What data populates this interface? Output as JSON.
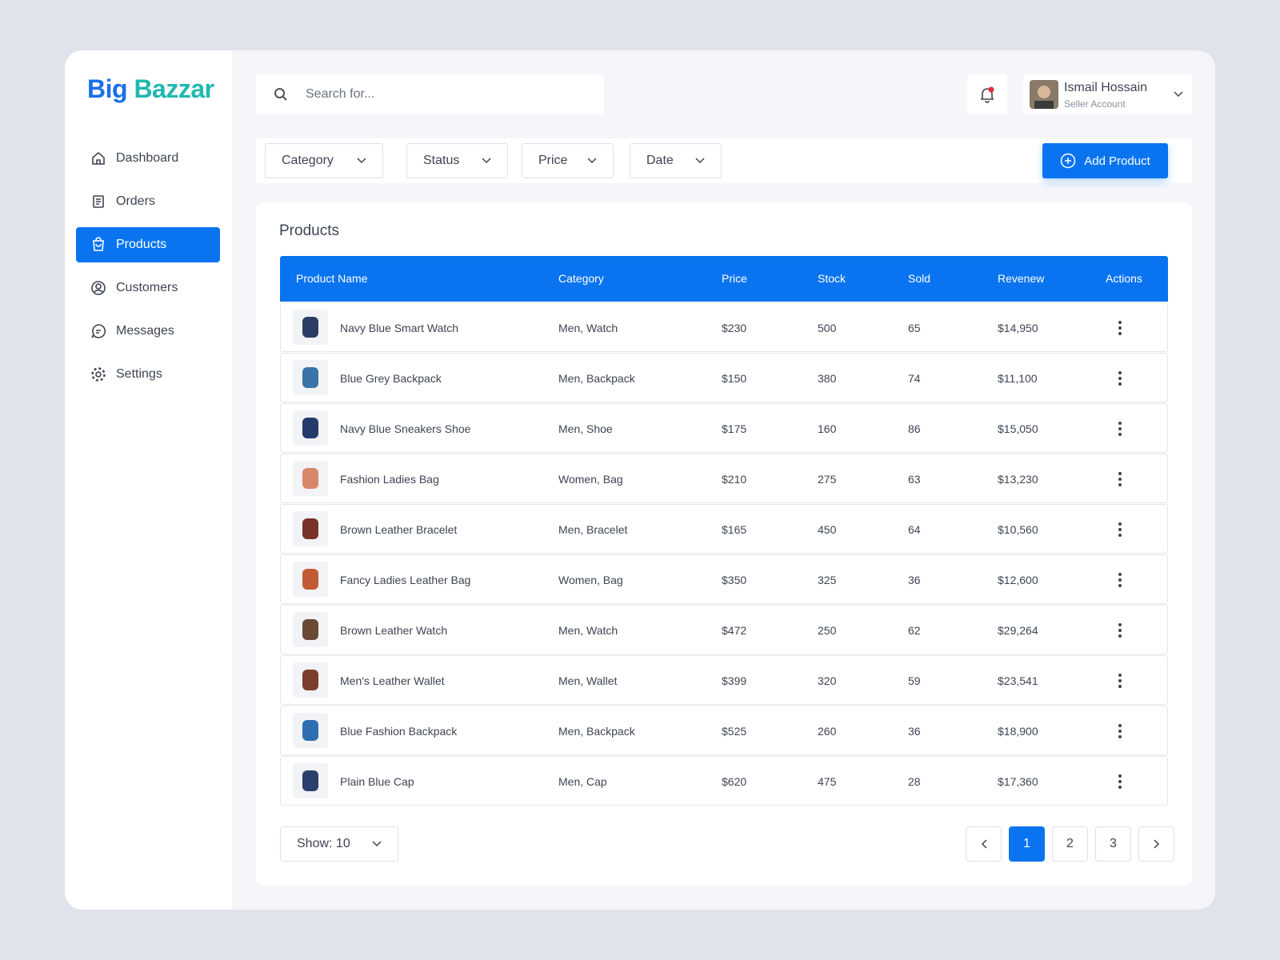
{
  "brand": {
    "first": "Big",
    "second": "Bazzar"
  },
  "nav": [
    "Dashboard",
    "Orders",
    "Products",
    "Customers",
    "Messages",
    "Settings"
  ],
  "search": {
    "placeholder": "Search for..."
  },
  "user": {
    "name": "Ismail Hossain",
    "role": "Seller Account"
  },
  "filters": [
    "Category",
    "Status",
    "Price",
    "Date"
  ],
  "add_button": "Add Product",
  "table": {
    "title": "Products",
    "columns": [
      "Product Name",
      "Category",
      "Price",
      "Stock",
      "Sold",
      "Revenew",
      "Actions"
    ],
    "rows": [
      [
        "Navy Blue Smart Watch",
        "Men, Watch",
        "$230",
        500,
        65,
        "$14,950"
      ],
      [
        "Blue Grey Backpack",
        "Men, Backpack",
        "$150",
        380,
        74,
        "$11,100"
      ],
      [
        "Navy Blue Sneakers Shoe",
        "Men, Shoe",
        "$175",
        160,
        86,
        "$15,050"
      ],
      [
        "Fashion Ladies Bag",
        "Women, Bag",
        "$210",
        275,
        63,
        "$13,230"
      ],
      [
        "Brown Leather Bracelet",
        "Men, Bracelet",
        "$165",
        450,
        64,
        "$10,560"
      ],
      [
        "Fancy Ladies Leather Bag",
        "Women, Bag",
        "$350",
        325,
        36,
        "$12,600"
      ],
      [
        "Brown Leather Watch",
        "Men, Watch",
        "$472",
        250,
        62,
        "$29,264"
      ],
      [
        "Men's Leather Wallet",
        "Men, Wallet",
        "$399",
        320,
        59,
        "$23,541"
      ],
      [
        "Blue Fashion Backpack",
        "Men, Backpack",
        "$525",
        260,
        36,
        "$18,900"
      ],
      [
        "Plain Blue Cap",
        "Men, Cap",
        "$620",
        475,
        28,
        "$17,360"
      ]
    ]
  },
  "show": "Show: 10",
  "pages": [
    1,
    2,
    3
  ]
}
